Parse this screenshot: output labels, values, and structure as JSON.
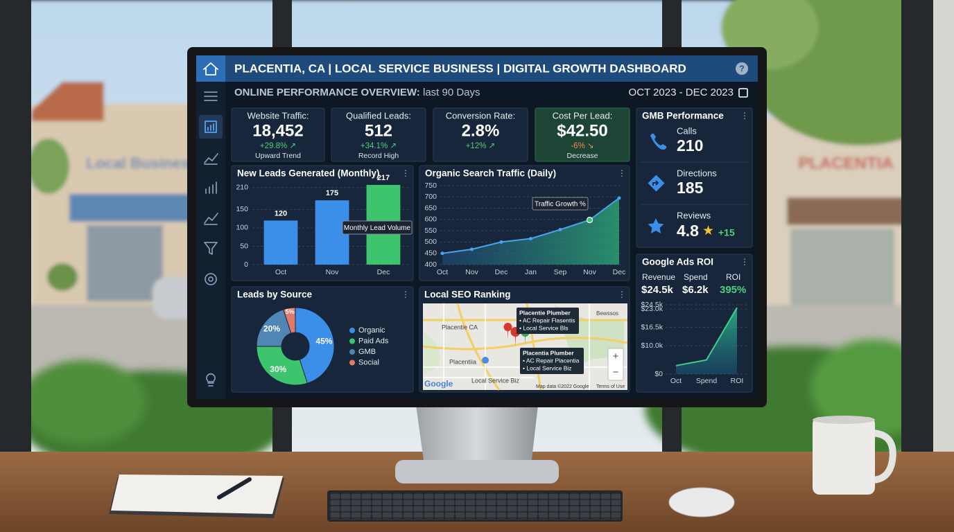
{
  "scene": {
    "signs": [
      "Local Business",
      "PLACENTIA"
    ]
  },
  "header": {
    "title": "PLACENTIA, CA | LOCAL SERVICE BUSINESS | DIGITAL GROWTH DASHBOARD",
    "help": "?"
  },
  "overview": {
    "label": "ONLINE PERFORMANCE OVERVIEW:",
    "period": "last 90 Days",
    "date_range": "OCT 2023 - DEC 2023"
  },
  "kpis": [
    {
      "label": "Website Traffic:",
      "value": "18,452",
      "change": "+29.8% ↗",
      "note": "Upward Trend"
    },
    {
      "label": "Qualified Leads:",
      "value": "512",
      "change": "+34.1% ↗",
      "note": "Record High"
    },
    {
      "label": "Conversion Rate:",
      "value": "2.8%",
      "change": "+12% ↗"
    },
    {
      "label": "Cost Per Lead:",
      "value": "$42.50",
      "change": "-6% ↘",
      "note": "Decrease"
    }
  ],
  "gmb": {
    "title": "GMB Performance",
    "items": [
      {
        "label": "Calls",
        "value": "210"
      },
      {
        "label": "Directions",
        "value": "185"
      },
      {
        "label": "Reviews",
        "value": "4.8",
        "star": "★",
        "change": "+15"
      }
    ]
  },
  "ads_roi": {
    "metrics": [
      {
        "label": "Revenue",
        "value": "$24.5k"
      },
      {
        "label": "Spend",
        "value": "$6.2k"
      },
      {
        "label": "ROI",
        "value": "395%"
      }
    ]
  },
  "seo": {
    "title": "Local SEO Ranking",
    "map_labels": [
      "Placentie CA",
      "Placentiia",
      "Bewssos",
      "Local Service Biz"
    ],
    "callouts": [
      [
        "Placentie Plumber",
        "• AC Repair Flasentis",
        "• Local Service Bls"
      ],
      [
        "Placentia Plumber",
        "• AC Repair Placentia",
        "• Local Service Biz"
      ]
    ],
    "zoom_in": "+",
    "zoom_out": "−",
    "logo": "Google",
    "attribution": "Map data ©2022 Google",
    "terms": "Terms of Use"
  },
  "chart_data": [
    {
      "type": "bar",
      "title": "New Leads Generated (Monthly)",
      "categories": [
        "Oct",
        "Nov",
        "Dec"
      ],
      "values": [
        120,
        175,
        217
      ],
      "colors": [
        "#3b8fe8",
        "#3b8fe8",
        "#3ec46d"
      ],
      "ylim": [
        0,
        230
      ],
      "yticks": [
        0,
        50,
        100,
        150,
        210
      ],
      "grid": true,
      "annotation": "Monthly Lead Volume"
    },
    {
      "type": "line",
      "title": "Organic Search Traffic (Daily)",
      "categories": [
        "Oct",
        "Nov",
        "Dec",
        "Jan",
        "Sep",
        "Nov",
        "Dec"
      ],
      "values": [
        450,
        468,
        500,
        515,
        555,
        598,
        695
      ],
      "color": "#4aa3ee",
      "ylim": [
        400,
        750
      ],
      "yticks": [
        400,
        450,
        500,
        550,
        600,
        650,
        700,
        750
      ],
      "grid": true,
      "markers": true,
      "area": true,
      "annotation": "Traffic Growth %"
    },
    {
      "type": "pie",
      "title": "Leads by Source",
      "categories": [
        "Organic",
        "Paid Ads",
        "GMB",
        "Social"
      ],
      "values": [
        45,
        30,
        20,
        5
      ],
      "value_labels": [
        "45%",
        "30%",
        "20%",
        "5%"
      ],
      "colors": [
        "#3b8fe8",
        "#3ec46d",
        "#4f86b3",
        "#e07a6a"
      ],
      "donut": true,
      "legend": "right"
    },
    {
      "type": "line",
      "title": "Google Ads ROI",
      "categories": [
        "Oct",
        "Spend",
        "ROI"
      ],
      "values": [
        3000,
        5000,
        23500
      ],
      "color": "#3fd08f",
      "ylim": [
        0,
        24500
      ],
      "yticks": [
        {
          "value": 0,
          "label": "$0"
        },
        {
          "value": 10000,
          "label": "$10.0k"
        },
        {
          "value": 16500,
          "label": "$16.5k"
        },
        {
          "value": 23000,
          "label": "$23.0k"
        },
        {
          "value": 24500,
          "label": "$24.5k"
        }
      ],
      "grid": true,
      "markers": false,
      "area": true
    }
  ]
}
